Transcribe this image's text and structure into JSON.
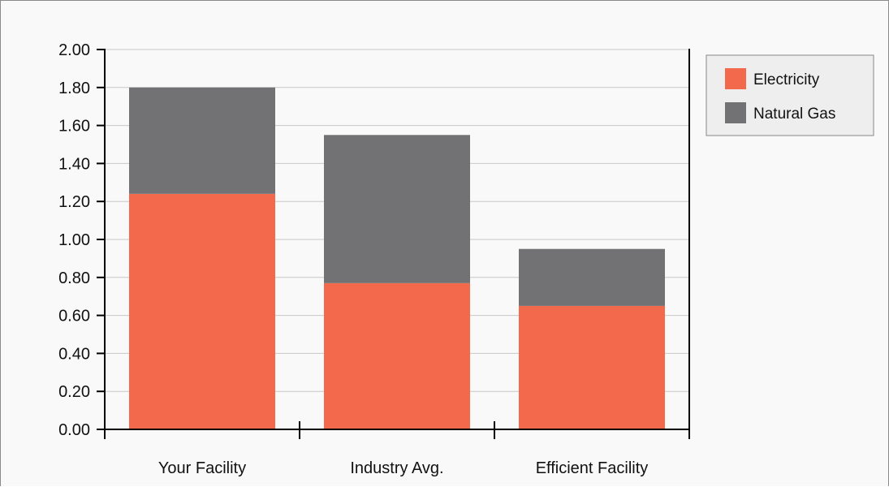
{
  "chart_data": {
    "type": "bar",
    "stacked": true,
    "categories": [
      "Your Facility",
      "Industry Avg.",
      "Efficient Facility"
    ],
    "series": [
      {
        "name": "Electricity",
        "color": "#f2694b",
        "values": [
          1.24,
          0.77,
          0.65
        ]
      },
      {
        "name": "Natural Gas",
        "color": "#727174",
        "values": [
          0.56,
          0.78,
          0.3
        ]
      }
    ],
    "ylim": [
      0,
      2.0
    ],
    "yticks": [
      "0.00",
      "0.20",
      "0.40",
      "0.60",
      "0.80",
      "1.00",
      "1.20",
      "1.40",
      "1.60",
      "1.80",
      "2.00"
    ],
    "grid": true,
    "legend_position": "top-right"
  }
}
